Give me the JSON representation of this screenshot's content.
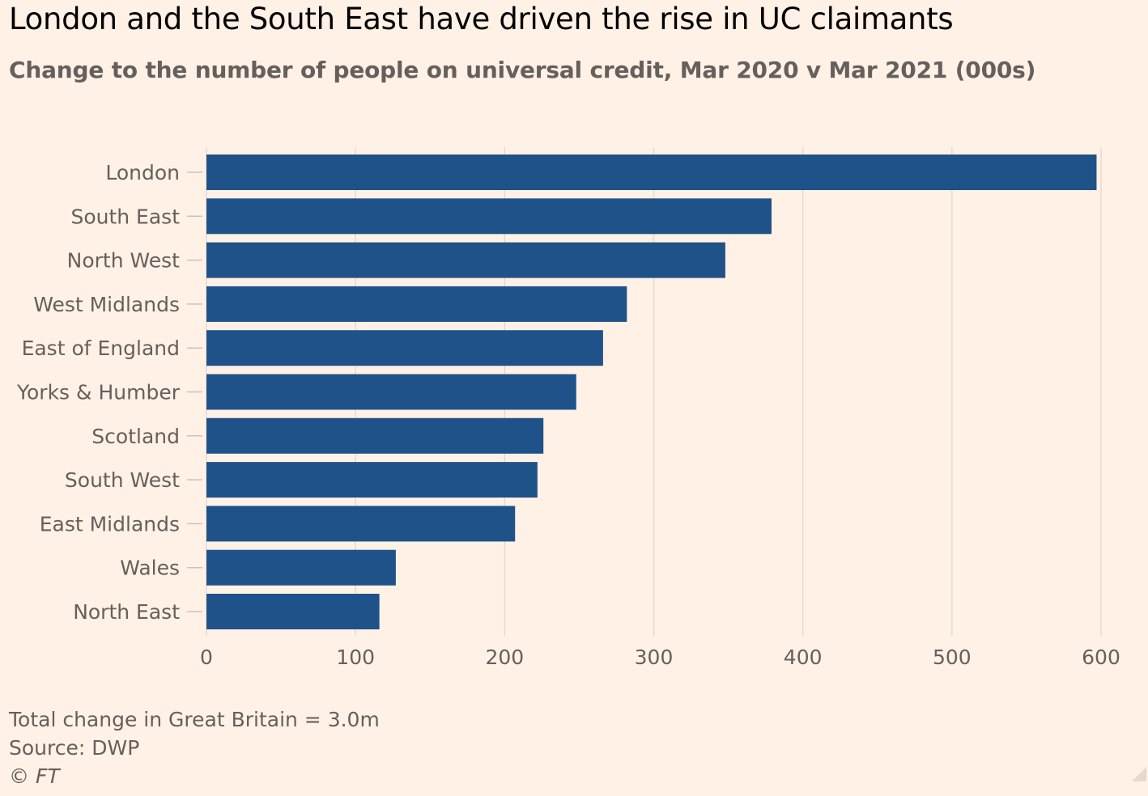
{
  "header": {
    "title": "London and the South East have driven the rise in UC claimants",
    "subtitle": "Change to the number of people on universal credit, Mar 2020 v Mar 2021 (000s)"
  },
  "footer": {
    "note": "Total change in Great Britain = 3.0m",
    "source": "Source: DWP",
    "credit": "© FT"
  },
  "colors": {
    "bar": "#1f5288",
    "grid": "#e6d9ce",
    "background": "#fff1e5"
  },
  "chart_data": {
    "type": "bar",
    "orientation": "horizontal",
    "title": "London and the South East have driven the rise in UC claimants",
    "subtitle": "Change to the number of people on universal credit, Mar 2020 v Mar 2021 (000s)",
    "categories": [
      "London",
      "South East",
      "North West",
      "West Midlands",
      "East of England",
      "Yorks & Humber",
      "Scotland",
      "South West",
      "East Midlands",
      "Wales",
      "North East"
    ],
    "values": [
      597,
      379,
      348,
      282,
      266,
      248,
      226,
      222,
      207,
      127,
      116
    ],
    "xlim": [
      0,
      600
    ],
    "xticks": [
      0,
      100,
      200,
      300,
      400,
      500,
      600
    ],
    "xlabel": "",
    "ylabel": "",
    "grid": true
  }
}
